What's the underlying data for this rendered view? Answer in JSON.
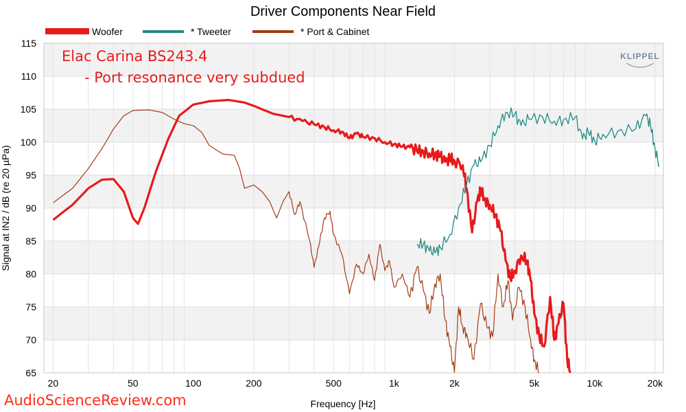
{
  "chart_data": {
    "type": "line",
    "title": "Driver Components Near Field",
    "xlabel": "Frequency [Hz]",
    "ylabel": "Signal at IN2 / dB (re 20 µPa)",
    "xscale": "log",
    "xlim": [
      18,
      22000
    ],
    "ylim": [
      65,
      115
    ],
    "yticks": [
      65,
      70,
      75,
      80,
      85,
      90,
      95,
      100,
      105,
      110,
      115
    ],
    "xticks": [
      {
        "value": 20,
        "label": "20"
      },
      {
        "value": 50,
        "label": "50"
      },
      {
        "value": 100,
        "label": "100"
      },
      {
        "value": 200,
        "label": "200"
      },
      {
        "value": 500,
        "label": "500"
      },
      {
        "value": 1000,
        "label": "1k"
      },
      {
        "value": 2000,
        "label": "2k"
      },
      {
        "value": 5000,
        "label": "5k"
      },
      {
        "value": 10000,
        "label": "10k"
      },
      {
        "value": 20000,
        "label": "20k"
      }
    ],
    "legend_position": "top",
    "annotations": [
      "Elac Carina BS243.4",
      "- Port resonance very subdued"
    ],
    "series": [
      {
        "name": "Woofer",
        "color": "#e8191a",
        "points": [
          [
            20,
            88.2
          ],
          [
            25,
            90.5
          ],
          [
            30,
            93
          ],
          [
            35,
            94.3
          ],
          [
            40,
            94.4
          ],
          [
            45,
            92.5
          ],
          [
            50,
            88.5
          ],
          [
            53,
            87.6
          ],
          [
            57,
            90
          ],
          [
            65,
            95.5
          ],
          [
            75,
            100.5
          ],
          [
            85,
            104
          ],
          [
            100,
            105.7
          ],
          [
            120,
            106.2
          ],
          [
            150,
            106.4
          ],
          [
            180,
            106
          ],
          [
            200,
            105.5
          ],
          [
            250,
            104.3
          ],
          [
            300,
            103.8
          ],
          [
            350,
            103.2
          ],
          [
            400,
            102.7
          ],
          [
            450,
            102.3
          ],
          [
            500,
            101.8
          ],
          [
            550,
            101.6
          ],
          [
            600,
            100.6
          ],
          [
            650,
            101.3
          ],
          [
            700,
            100.8
          ],
          [
            800,
            100.6
          ],
          [
            900,
            100
          ],
          [
            1000,
            99.7
          ],
          [
            1100,
            99.3
          ],
          [
            1200,
            99.2
          ],
          [
            1300,
            98.7
          ],
          [
            1400,
            98.6
          ],
          [
            1500,
            98.3
          ],
          [
            1600,
            98.2
          ],
          [
            1700,
            97.8
          ],
          [
            1800,
            97
          ],
          [
            1900,
            97.5
          ],
          [
            2000,
            97.2
          ],
          [
            2200,
            96.5
          ],
          [
            2300,
            93
          ],
          [
            2450,
            86.3
          ],
          [
            2600,
            91
          ],
          [
            2700,
            92.7
          ],
          [
            2850,
            91.3
          ],
          [
            3000,
            90.5
          ],
          [
            3200,
            89
          ],
          [
            3400,
            86.5
          ],
          [
            3600,
            82
          ],
          [
            3800,
            79.3
          ],
          [
            4000,
            80.5
          ],
          [
            4300,
            82.8
          ],
          [
            4600,
            82
          ],
          [
            4800,
            79
          ],
          [
            5000,
            74
          ],
          [
            5300,
            70.5
          ],
          [
            5600,
            69
          ],
          [
            6000,
            76.5
          ],
          [
            6300,
            70
          ],
          [
            6600,
            72.5
          ],
          [
            7000,
            75.5
          ],
          [
            7300,
            67
          ],
          [
            7600,
            65
          ]
        ]
      },
      {
        "name": "* Tweeter",
        "color": "#1f8a84",
        "points": [
          [
            1300,
            84.5
          ],
          [
            1400,
            84.5
          ],
          [
            1500,
            83.5
          ],
          [
            1600,
            83.2
          ],
          [
            1700,
            84
          ],
          [
            1900,
            86
          ],
          [
            2100,
            90
          ],
          [
            2300,
            93.5
          ],
          [
            2500,
            96.5
          ],
          [
            2700,
            97
          ],
          [
            3000,
            99.5
          ],
          [
            3300,
            102.5
          ],
          [
            3600,
            104.5
          ],
          [
            4000,
            104.2
          ],
          [
            4300,
            102.5
          ],
          [
            4700,
            103.5
          ],
          [
            5500,
            103.8
          ],
          [
            6300,
            103.2
          ],
          [
            7000,
            103.4
          ],
          [
            8000,
            103.8
          ],
          [
            8700,
            100.5
          ],
          [
            9300,
            101.5
          ],
          [
            10000,
            100.2
          ],
          [
            11000,
            101.2
          ],
          [
            13000,
            101.6
          ],
          [
            16000,
            102
          ],
          [
            18000,
            104
          ],
          [
            19000,
            102.5
          ],
          [
            20000,
            99
          ],
          [
            21000,
            96.5
          ]
        ]
      },
      {
        "name": "* Port & Cabinet",
        "color": "#a33a14",
        "points": [
          [
            20,
            90.8
          ],
          [
            25,
            93
          ],
          [
            30,
            96
          ],
          [
            35,
            99
          ],
          [
            40,
            102
          ],
          [
            45,
            104
          ],
          [
            50,
            104.8
          ],
          [
            60,
            104.9
          ],
          [
            70,
            104.5
          ],
          [
            80,
            103.5
          ],
          [
            90,
            102.8
          ],
          [
            100,
            102.5
          ],
          [
            110,
            101.5
          ],
          [
            120,
            99.5
          ],
          [
            140,
            98.2
          ],
          [
            160,
            98
          ],
          [
            170,
            96
          ],
          [
            180,
            93
          ],
          [
            200,
            93.5
          ],
          [
            220,
            92.5
          ],
          [
            240,
            91
          ],
          [
            260,
            88.5
          ],
          [
            280,
            91
          ],
          [
            300,
            92.5
          ],
          [
            320,
            89
          ],
          [
            340,
            91
          ],
          [
            380,
            85
          ],
          [
            400,
            81
          ],
          [
            420,
            84
          ],
          [
            450,
            88.5
          ],
          [
            480,
            89.5
          ],
          [
            500,
            86
          ],
          [
            550,
            83
          ],
          [
            600,
            77
          ],
          [
            650,
            81.5
          ],
          [
            700,
            80
          ],
          [
            750,
            83
          ],
          [
            800,
            79
          ],
          [
            850,
            84.5
          ],
          [
            900,
            80.5
          ],
          [
            950,
            82
          ],
          [
            1000,
            78
          ],
          [
            1100,
            80
          ],
          [
            1200,
            76.5
          ],
          [
            1300,
            81
          ],
          [
            1400,
            77.5
          ],
          [
            1500,
            74
          ],
          [
            1600,
            78.5
          ],
          [
            1700,
            80
          ],
          [
            1800,
            73
          ],
          [
            1900,
            69
          ],
          [
            2000,
            65
          ],
          [
            2100,
            75
          ],
          [
            2200,
            72
          ],
          [
            2300,
            71
          ],
          [
            2500,
            67
          ],
          [
            2700,
            75.5
          ],
          [
            2900,
            72
          ],
          [
            3100,
            70.5
          ],
          [
            3300,
            80
          ],
          [
            3500,
            75
          ],
          [
            3700,
            79
          ],
          [
            3900,
            73
          ],
          [
            4200,
            78
          ],
          [
            4500,
            75
          ],
          [
            4800,
            70
          ],
          [
            5000,
            67
          ],
          [
            5300,
            65
          ]
        ]
      }
    ]
  },
  "watermark": "AudioScienceReview.com",
  "logo_text": "KLIPPEL"
}
